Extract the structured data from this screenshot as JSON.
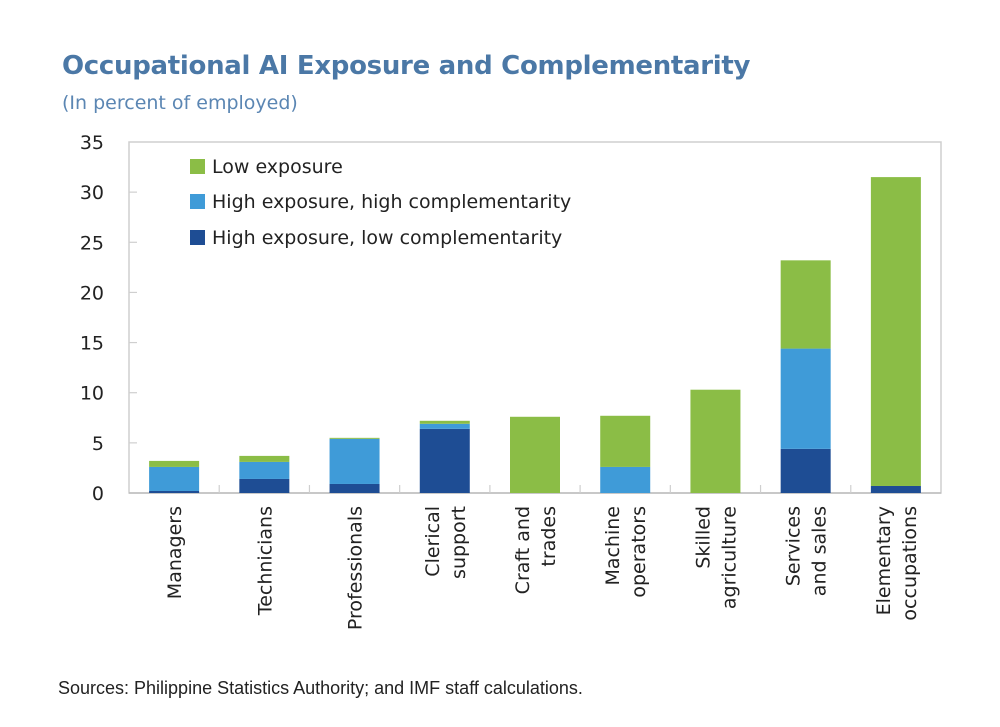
{
  "title": "Occupational AI Exposure and Complementarity",
  "subtitle": "(In percent of employed)",
  "source": "Sources: Philippine Statistics Authority; and IMF staff calculations.",
  "colors": {
    "low_exposure": "#8BBD46",
    "high_high": "#3F9BD8",
    "high_low": "#1E4D94",
    "title": "#4B78A6",
    "axis": "#cfcfcf"
  },
  "chart_data": {
    "type": "bar",
    "stacked": true,
    "title": "Occupational AI Exposure and Complementarity",
    "subtitle": "(In percent of employed)",
    "xlabel": "",
    "ylabel": "",
    "ylim": [
      0,
      35
    ],
    "yticks": [
      0,
      5,
      10,
      15,
      20,
      25,
      30,
      35
    ],
    "grid": false,
    "legend_position": "top-left",
    "categories": [
      [
        "Managers"
      ],
      [
        "Technicians"
      ],
      [
        "Professionals"
      ],
      [
        "Clerical",
        "support"
      ],
      [
        "Craft and",
        "trades"
      ],
      [
        "Machine",
        "operators"
      ],
      [
        "Skilled",
        "agriculture"
      ],
      [
        "Services",
        "and sales"
      ],
      [
        "Elementary",
        "occupations"
      ]
    ],
    "series": [
      {
        "name": "High exposure, low complementarity",
        "color_key": "high_low",
        "values": [
          0.2,
          1.4,
          0.9,
          6.4,
          0.0,
          0.0,
          0.0,
          4.4,
          0.7
        ]
      },
      {
        "name": "High exposure, high complementarity",
        "color_key": "high_high",
        "values": [
          2.4,
          1.7,
          4.5,
          0.5,
          0.0,
          2.6,
          0.0,
          10.0,
          0.0
        ]
      },
      {
        "name": "Low exposure",
        "color_key": "low_exposure",
        "values": [
          0.6,
          0.6,
          0.1,
          0.3,
          7.6,
          5.1,
          10.3,
          8.8,
          30.8
        ]
      }
    ],
    "legend_order": [
      "Low exposure",
      "High exposure, high complementarity",
      "High exposure, low complementarity"
    ]
  }
}
